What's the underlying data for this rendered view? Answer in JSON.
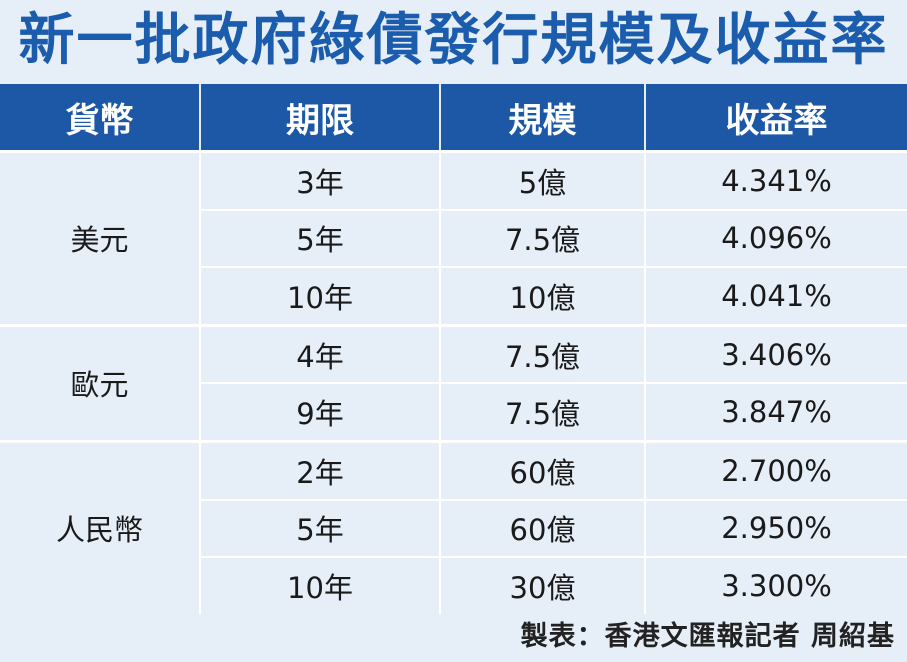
{
  "title": "新一批政府綠債發行規模及收益率",
  "table": {
    "header": [
      "貨幣",
      "期限",
      "規模",
      "收益率"
    ],
    "groups": [
      {
        "currency": "美元",
        "rows": [
          [
            "3年",
            "5億",
            "4.341%"
          ],
          [
            "5年",
            "7.5億",
            "4.096%"
          ],
          [
            "10年",
            "10億",
            "4.041%"
          ]
        ]
      },
      {
        "currency": "歐元",
        "rows": [
          [
            "4年",
            "7.5億",
            "3.406%"
          ],
          [
            "9年",
            "7.5億",
            "3.847%"
          ]
        ]
      },
      {
        "currency": "人民幣",
        "rows": [
          [
            "2年",
            "60億",
            "2.700%"
          ],
          [
            "5年",
            "60億",
            "2.950%"
          ],
          [
            "10年",
            "30億",
            "3.300%"
          ]
        ]
      }
    ]
  },
  "footer": "製表：香港文匯報記者 周紹基"
}
